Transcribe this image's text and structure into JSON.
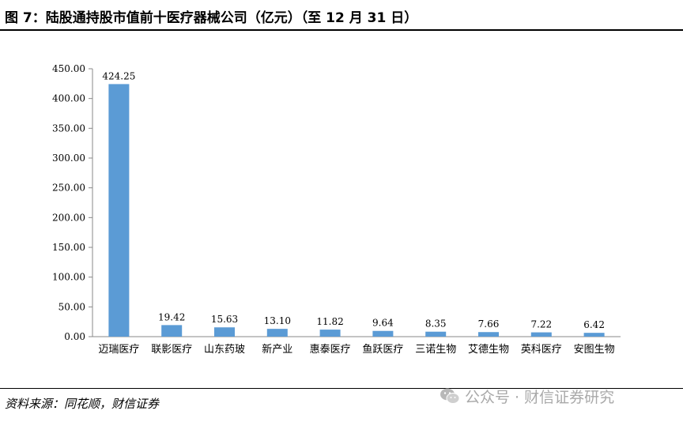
{
  "header": {
    "title": "图 7：陆股通持股市值前十医疗器械公司（亿元）（至 12 月 31 日）"
  },
  "footer": {
    "source": "资料来源：同花顺，财信证券",
    "watermark": "公众号 · 财信证券研究",
    "watermark_icon": "wechat-icon"
  },
  "chart_data": {
    "type": "bar",
    "categories": [
      "迈瑞医疗",
      "联影医疗",
      "山东药玻",
      "新产业",
      "惠泰医疗",
      "鱼跃医疗",
      "三诺生物",
      "艾德生物",
      "英科医疗",
      "安图生物"
    ],
    "values": [
      424.25,
      19.42,
      15.63,
      13.1,
      11.82,
      9.64,
      8.35,
      7.66,
      7.22,
      6.42
    ],
    "value_labels": [
      "424.25",
      "19.42",
      "15.63",
      "13.10",
      "11.82",
      "9.64",
      "8.35",
      "7.66",
      "7.22",
      "6.42"
    ],
    "yticks": [
      "0.00",
      "50.00",
      "100.00",
      "150.00",
      "200.00",
      "250.00",
      "300.00",
      "350.00",
      "400.00",
      "450.00"
    ],
    "ylim": [
      0,
      450
    ],
    "grid": false,
    "legend": "none",
    "bar_color": "#5b9bd5",
    "axis_color": "#888888"
  }
}
